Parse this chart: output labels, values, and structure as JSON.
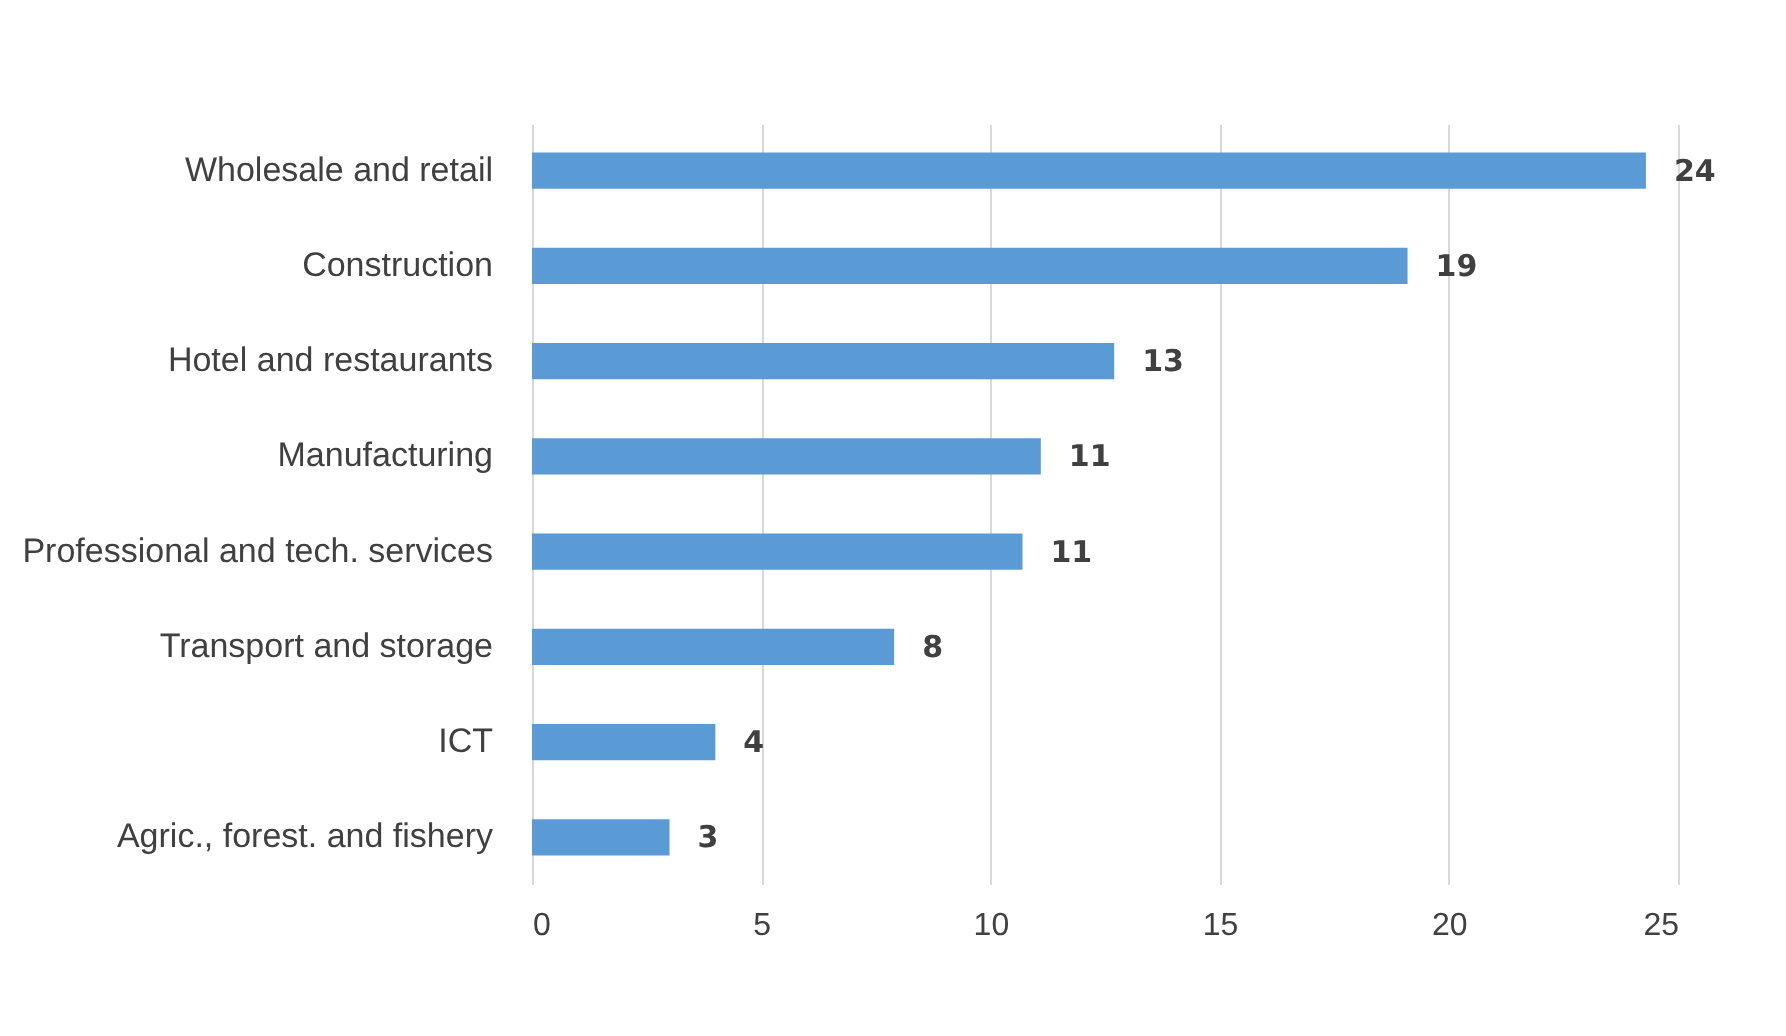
{
  "chart_data": {
    "type": "bar",
    "orientation": "horizontal",
    "categories": [
      "Wholesale and retail",
      "Construction",
      "Hotel and restaurants",
      "Manufacturing",
      "Professional and tech. services",
      "Transport and storage",
      "ICT",
      "Agric., forest. and fishery"
    ],
    "values": [
      24.3,
      19.1,
      12.7,
      11.1,
      10.7,
      7.9,
      4.0,
      3.0
    ],
    "value_labels": [
      "24",
      "19",
      "13",
      "11",
      "11",
      "8",
      "4",
      "3"
    ],
    "color": "#5b9bd5",
    "xlim": [
      0,
      25
    ],
    "xticks": [
      0,
      5,
      10,
      15,
      20,
      25
    ],
    "grid": "x"
  }
}
